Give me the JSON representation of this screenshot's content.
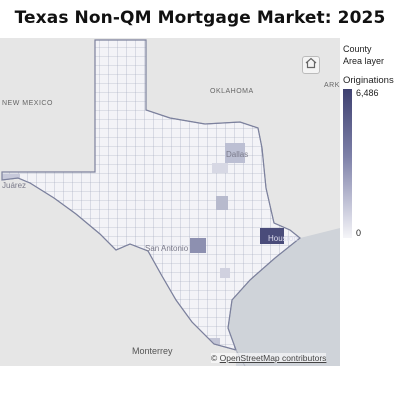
{
  "title": "Texas Non-QM Mortgage Market: 2025",
  "legend": {
    "layer_label_1": "County",
    "layer_label_2": "Area layer",
    "measure": "Originations",
    "max_value": "6,486",
    "min_value": "0",
    "color_max": "#3f4171",
    "color_min": "#f5f5f8"
  },
  "map_labels": {
    "oklahoma": "OKLAHOMA",
    "new_mexico": "NEW MEXICO",
    "arkansas_partial": "ARK",
    "monterrey": "Monterrey",
    "juarez": "Juárez",
    "dallas": "Dallas",
    "san_antonio": "San Antonio",
    "houston": "Houston"
  },
  "attribution": {
    "prefix": "©",
    "link_text": "OpenStreetMap contributors"
  },
  "icons": {
    "home": "home-icon"
  }
}
